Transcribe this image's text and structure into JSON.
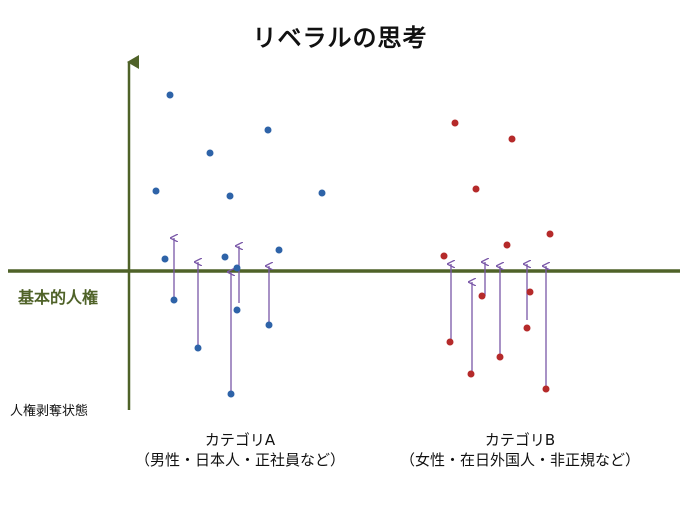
{
  "title": "リベラルの思考",
  "axis": {
    "baseline_label": "基本的人権",
    "bottom_label": "人権剥奪状態"
  },
  "categories": [
    {
      "name": "カテゴリA",
      "sub": "（男性・日本人・正社員など）"
    },
    {
      "name": "カテゴリB",
      "sub": "（女性・在日外国人・非正規など）"
    }
  ],
  "colors": {
    "axis": "#4f6228",
    "category_a_points": "#2e63a8",
    "category_b_points": "#b52a2a",
    "arrows": "#7a58a8"
  }
}
